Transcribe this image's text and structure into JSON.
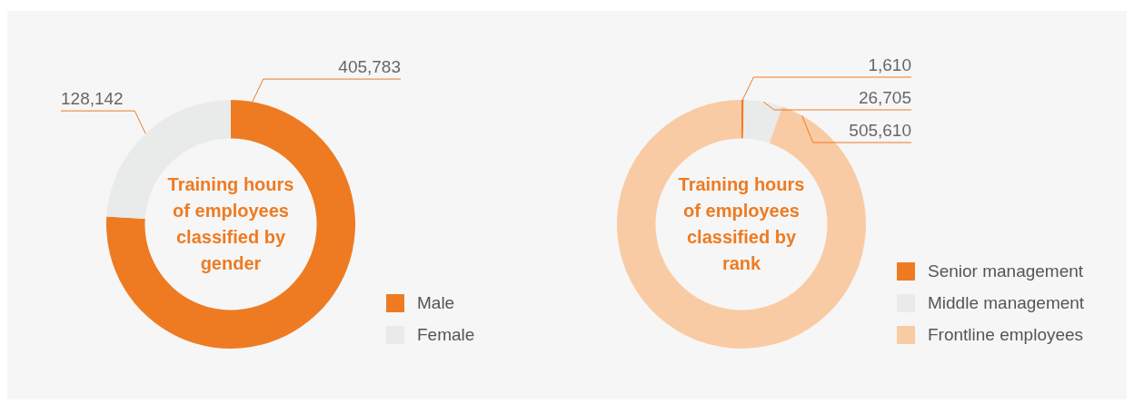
{
  "chart_data": [
    {
      "type": "donut",
      "title": "Training hours of employees classified by gender",
      "categories": [
        "Male",
        "Female"
      ],
      "values": [
        405783,
        128142
      ],
      "colors": [
        "#ee7b22",
        "#e9ebea"
      ],
      "value_labels": [
        "405,783",
        "128,142"
      ],
      "legend": "bottom right"
    },
    {
      "type": "donut",
      "title": "Training hours of employees classified by rank",
      "categories": [
        "Senior management",
        "Middle management",
        "Frontline employees"
      ],
      "values": [
        1610,
        26705,
        505610
      ],
      "colors": [
        "#ee7b22",
        "#e9ebea",
        "#f9cba4"
      ],
      "value_labels": [
        "1,610",
        "26,705",
        "505,610"
      ],
      "legend": "bottom right"
    }
  ]
}
